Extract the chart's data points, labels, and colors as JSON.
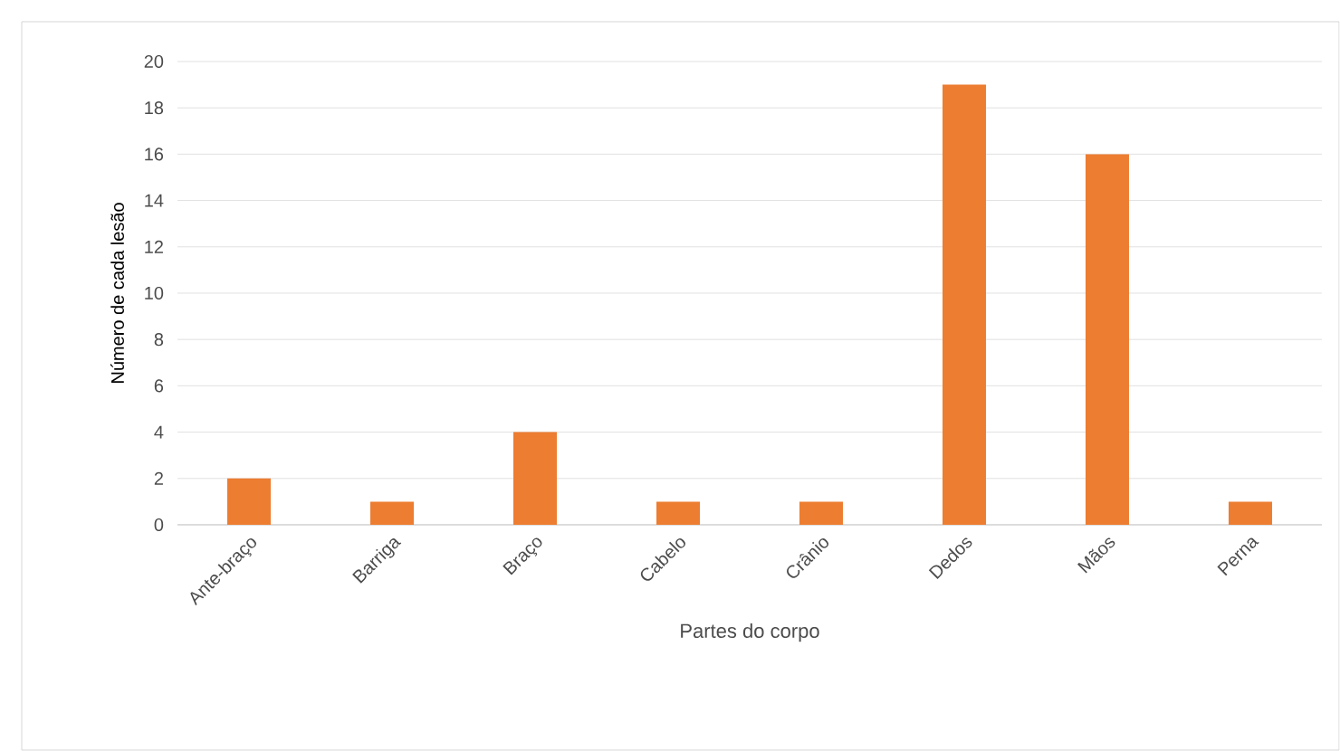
{
  "chart_data": {
    "type": "bar",
    "xlabel": "Partes do corpo",
    "ylabel": "Número de cada lesão",
    "categories": [
      "Ante-braço",
      "Barriga",
      "Braço",
      "Cabelo",
      "Crânio",
      "Dedos",
      "Mãos",
      "Perna"
    ],
    "values": [
      2,
      1,
      4,
      1,
      1,
      19,
      16,
      1
    ],
    "color": "#ed7d31",
    "ylim": [
      0,
      20
    ],
    "yticks": [
      0,
      2,
      4,
      6,
      8,
      10,
      12,
      14,
      16,
      18,
      20
    ],
    "grid": "y"
  }
}
